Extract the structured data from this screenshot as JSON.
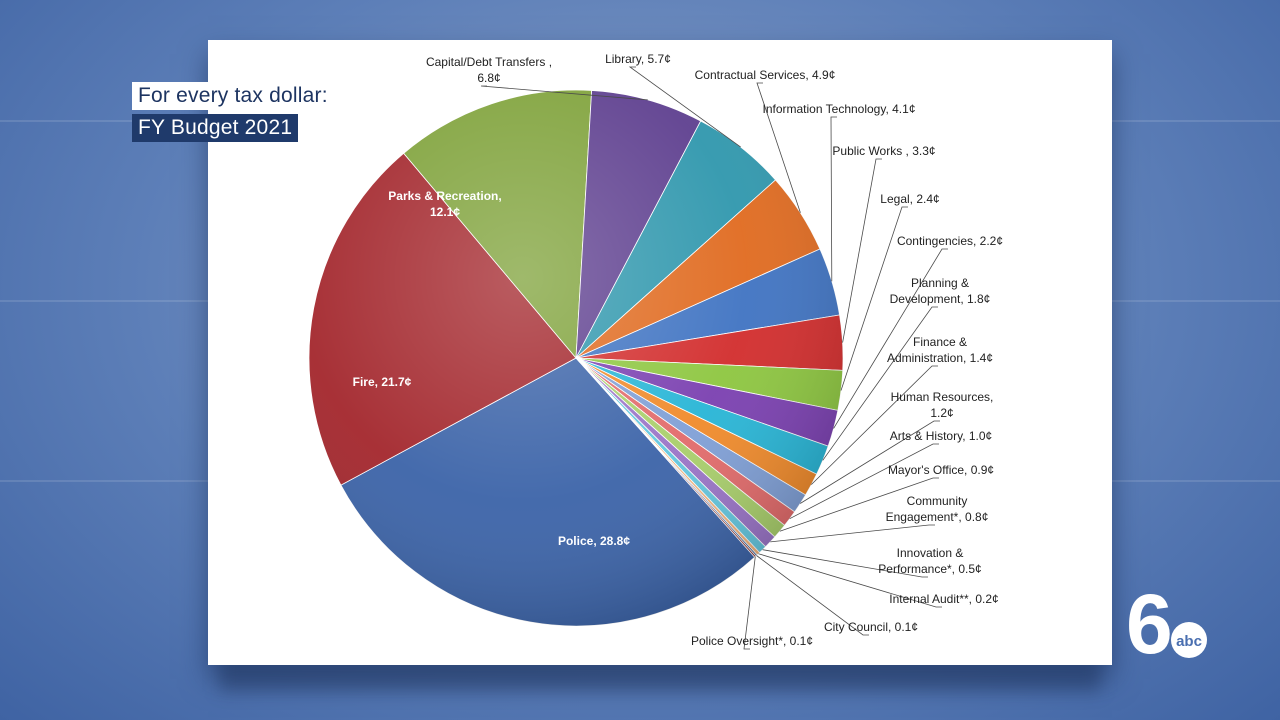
{
  "overlay": {
    "line1": "For every tax dollar:",
    "line2": "FY Budget 2021"
  },
  "logo": {
    "text": "abc",
    "numeral": "6"
  },
  "chart_data": {
    "type": "pie",
    "title": "",
    "unit": "¢",
    "slices": [
      {
        "label": "Police, 28.8¢",
        "lines": [
          "Police, 28.8¢"
        ],
        "value": 28.8,
        "color": "#3b63a8",
        "inside": true
      },
      {
        "label": "Fire, 21.7¢",
        "lines": [
          "Fire, 21.7¢"
        ],
        "value": 21.7,
        "color": "#a3262c",
        "inside": true
      },
      {
        "label": "Parks & Recreation, 12.1¢",
        "lines": [
          "Parks & Recreation,",
          "12.1¢"
        ],
        "value": 12.1,
        "color": "#7fa23a",
        "inside": true
      },
      {
        "label": "Capital/Debt Transfers, 6.8¢",
        "lines": [
          "Capital/Debt Transfers ,",
          "6.8¢"
        ],
        "value": 6.8,
        "color": "#5e3f8f",
        "inside": false
      },
      {
        "label": "Library, 5.7¢",
        "lines": [
          "Library, 5.7¢"
        ],
        "value": 5.7,
        "color": "#2f97ad",
        "inside": false
      },
      {
        "label": "Contractual Services, 4.9¢",
        "lines": [
          "Contractual Services, 4.9¢"
        ],
        "value": 4.9,
        "color": "#e06a1f",
        "inside": false
      },
      {
        "label": "Information Technology, 4.1¢",
        "lines": [
          "Information Technology, 4.1¢"
        ],
        "value": 4.1,
        "color": "#3f73c2",
        "inside": false
      },
      {
        "label": "Public Works, 3.3¢",
        "lines": [
          "Public Works , 3.3¢"
        ],
        "value": 3.3,
        "color": "#d22c2c",
        "inside": false
      },
      {
        "label": "Legal, 2.4¢",
        "lines": [
          "Legal, 2.4¢"
        ],
        "value": 2.4,
        "color": "#8dc63f",
        "inside": false
      },
      {
        "label": "Contingencies, 2.2¢",
        "lines": [
          "Contingencies, 2.2¢"
        ],
        "value": 2.2,
        "color": "#7a3fb0",
        "inside": false
      },
      {
        "label": "Planning & Development, 1.8¢",
        "lines": [
          "Planning &",
          "Development,  1.8¢"
        ],
        "value": 1.8,
        "color": "#27b5d6",
        "inside": false
      },
      {
        "label": "Finance & Administration, 1.4¢",
        "lines": [
          "Finance &",
          "Administration, 1.4¢"
        ],
        "value": 1.4,
        "color": "#f08a2a",
        "inside": false
      },
      {
        "label": "Human Resources, 1.2¢",
        "lines": [
          "Human Resources,",
          "1.2¢"
        ],
        "value": 1.2,
        "color": "#7f9fd6",
        "inside": false
      },
      {
        "label": "Arts & History, 1.0¢",
        "lines": [
          "Arts & History, 1.0¢"
        ],
        "value": 1.0,
        "color": "#e26a6a",
        "inside": false
      },
      {
        "label": "Mayor's Office, 0.9¢",
        "lines": [
          "Mayor's Office, 0.9¢"
        ],
        "value": 0.9,
        "color": "#a9cf6b",
        "inside": false
      },
      {
        "label": "Community Engagement*, 0.8¢",
        "lines": [
          "Community",
          "Engagement*,  0.8¢"
        ],
        "value": 0.8,
        "color": "#9a74c7",
        "inside": false
      },
      {
        "label": "Innovation & Performance*, 0.5¢",
        "lines": [
          "Innovation &",
          "Performance*, 0.5¢"
        ],
        "value": 0.5,
        "color": "#63c7df",
        "inside": false
      },
      {
        "label": "Internal Audit**, 0.2¢",
        "lines": [
          "Internal Audit**, 0.2¢"
        ],
        "value": 0.2,
        "color": "#f4b37a",
        "inside": false
      },
      {
        "label": "City Council, 0.1¢",
        "lines": [
          "City Council, 0.1¢"
        ],
        "value": 0.1,
        "color": "#2d4f8a",
        "inside": false
      },
      {
        "label": "Police Oversight*, 0.1¢",
        "lines": [
          "Police Oversight*, 0.1¢"
        ],
        "value": 0.1,
        "color": "#8a2a2a",
        "inside": false
      }
    ]
  }
}
